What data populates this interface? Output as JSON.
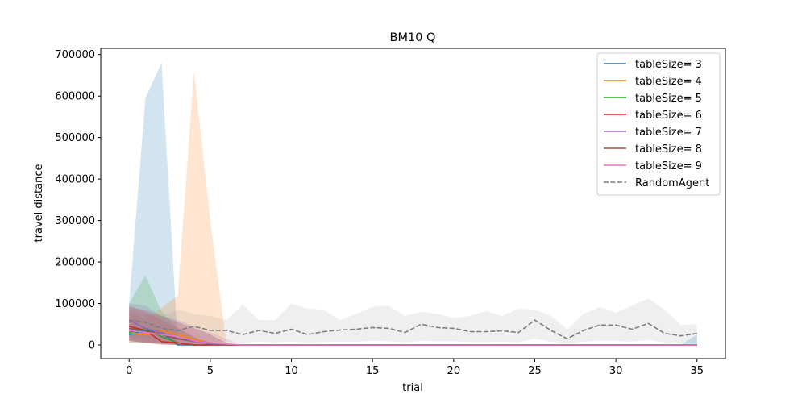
{
  "chart_data": {
    "type": "line",
    "title": "BM10  Q",
    "xlabel": "trial",
    "ylabel": "travel distance",
    "xlim": [
      -1.75,
      36.75
    ],
    "ylim": [
      -33000,
      715000
    ],
    "xticks": [
      0,
      5,
      10,
      15,
      20,
      25,
      30,
      35
    ],
    "yticks": [
      0,
      100000,
      200000,
      300000,
      400000,
      500000,
      600000,
      700000
    ],
    "grid": false,
    "legend_position": "top-right",
    "x": [
      0,
      1,
      2,
      3,
      4,
      5,
      6,
      7,
      8,
      9,
      10,
      11,
      12,
      13,
      14,
      15,
      16,
      17,
      18,
      19,
      20,
      21,
      22,
      23,
      24,
      25,
      26,
      27,
      28,
      29,
      30,
      31,
      32,
      33,
      34,
      35
    ],
    "series": [
      {
        "name": "tableSize= 3",
        "color": "#1f77b4",
        "style": "solid",
        "values": [
          25000,
          35000,
          30000,
          0,
          0,
          0,
          0,
          0,
          0,
          0,
          0,
          0,
          0,
          0,
          0,
          0,
          0,
          0,
          0,
          0,
          0,
          0,
          0,
          0,
          0,
          0,
          0,
          0,
          0,
          0,
          0,
          0,
          0,
          0,
          0,
          0
        ],
        "band_upper": [
          100000,
          595000,
          680000,
          0,
          0,
          0,
          0,
          0,
          0,
          0,
          0,
          0,
          0,
          0,
          0,
          0,
          0,
          0,
          0,
          0,
          0,
          0,
          0,
          0,
          0,
          0,
          0,
          0,
          0,
          0,
          0,
          0,
          0,
          0,
          0,
          25000
        ],
        "band_lower": [
          5000,
          5000,
          5000,
          0,
          0,
          0,
          0,
          0,
          0,
          0,
          0,
          0,
          0,
          0,
          0,
          0,
          0,
          0,
          0,
          0,
          0,
          0,
          0,
          0,
          0,
          0,
          0,
          0,
          0,
          0,
          0,
          0,
          0,
          0,
          0,
          0
        ]
      },
      {
        "name": "tableSize= 4",
        "color": "#ff7f0e",
        "style": "solid",
        "values": [
          30000,
          25000,
          35000,
          25000,
          15000,
          5000,
          0,
          0,
          0,
          0,
          0,
          0,
          0,
          0,
          0,
          0,
          0,
          0,
          0,
          0,
          0,
          0,
          0,
          0,
          0,
          0,
          0,
          0,
          0,
          0,
          0,
          0,
          0,
          0,
          0,
          0
        ],
        "band_upper": [
          80000,
          60000,
          90000,
          120000,
          660000,
          300000,
          0,
          0,
          0,
          0,
          0,
          0,
          0,
          0,
          0,
          0,
          0,
          0,
          0,
          0,
          0,
          0,
          0,
          0,
          0,
          0,
          0,
          0,
          0,
          0,
          0,
          0,
          0,
          0,
          0,
          0
        ],
        "band_lower": [
          5000,
          5000,
          5000,
          2000,
          0,
          0,
          0,
          0,
          0,
          0,
          0,
          0,
          0,
          0,
          0,
          0,
          0,
          0,
          0,
          0,
          0,
          0,
          0,
          0,
          0,
          0,
          0,
          0,
          0,
          0,
          0,
          0,
          0,
          0,
          0,
          0
        ]
      },
      {
        "name": "tableSize= 5",
        "color": "#2ca02c",
        "style": "solid",
        "values": [
          30000,
          40000,
          20000,
          5000,
          0,
          0,
          0,
          0,
          0,
          0,
          0,
          0,
          0,
          0,
          0,
          0,
          0,
          0,
          0,
          0,
          0,
          0,
          0,
          0,
          0,
          0,
          0,
          0,
          0,
          0,
          0,
          0,
          0,
          0,
          0,
          0
        ],
        "band_upper": [
          100000,
          168000,
          80000,
          40000,
          20000,
          0,
          0,
          0,
          0,
          0,
          0,
          0,
          0,
          0,
          0,
          0,
          0,
          0,
          0,
          0,
          0,
          0,
          0,
          0,
          0,
          0,
          0,
          0,
          0,
          0,
          0,
          0,
          0,
          0,
          0,
          0
        ],
        "band_lower": [
          10000,
          5000,
          2000,
          0,
          0,
          0,
          0,
          0,
          0,
          0,
          0,
          0,
          0,
          0,
          0,
          0,
          0,
          0,
          0,
          0,
          0,
          0,
          0,
          0,
          0,
          0,
          0,
          0,
          0,
          0,
          0,
          0,
          0,
          0,
          0,
          0
        ]
      },
      {
        "name": "tableSize= 6",
        "color": "#d62728",
        "style": "solid",
        "values": [
          45000,
          35000,
          8000,
          5000,
          0,
          0,
          0,
          0,
          0,
          0,
          0,
          0,
          0,
          0,
          0,
          0,
          0,
          0,
          0,
          0,
          0,
          0,
          0,
          0,
          0,
          0,
          0,
          0,
          0,
          0,
          0,
          0,
          0,
          0,
          0,
          0
        ],
        "band_upper": [
          95000,
          80000,
          60000,
          40000,
          20000,
          0,
          0,
          0,
          0,
          0,
          0,
          0,
          0,
          0,
          0,
          0,
          0,
          0,
          0,
          0,
          0,
          0,
          0,
          0,
          0,
          0,
          0,
          0,
          0,
          0,
          0,
          0,
          0,
          0,
          0,
          0
        ],
        "band_lower": [
          10000,
          5000,
          0,
          0,
          0,
          0,
          0,
          0,
          0,
          0,
          0,
          0,
          0,
          0,
          0,
          0,
          0,
          0,
          0,
          0,
          0,
          0,
          0,
          0,
          0,
          0,
          0,
          0,
          0,
          0,
          0,
          0,
          0,
          0,
          0,
          0
        ]
      },
      {
        "name": "tableSize= 7",
        "color": "#9467bd",
        "style": "solid",
        "values": [
          60000,
          40000,
          30000,
          15000,
          8000,
          3000,
          0,
          0,
          0,
          0,
          0,
          0,
          0,
          0,
          0,
          0,
          0,
          0,
          0,
          0,
          0,
          0,
          0,
          0,
          0,
          0,
          0,
          0,
          0,
          0,
          0,
          0,
          0,
          0,
          0,
          0
        ],
        "band_upper": [
          100000,
          95000,
          70000,
          60000,
          45000,
          25000,
          5000,
          0,
          0,
          0,
          0,
          0,
          0,
          0,
          0,
          0,
          0,
          0,
          0,
          0,
          0,
          0,
          0,
          0,
          0,
          0,
          0,
          0,
          0,
          0,
          0,
          0,
          0,
          0,
          0,
          0
        ],
        "band_lower": [
          15000,
          8000,
          3000,
          0,
          0,
          0,
          0,
          0,
          0,
          0,
          0,
          0,
          0,
          0,
          0,
          0,
          0,
          0,
          0,
          0,
          0,
          0,
          0,
          0,
          0,
          0,
          0,
          0,
          0,
          0,
          0,
          0,
          0,
          0,
          0,
          0
        ]
      },
      {
        "name": "tableSize= 8",
        "color": "#8c564b",
        "style": "solid",
        "values": [
          40000,
          35000,
          25000,
          15000,
          10000,
          5000,
          0,
          0,
          0,
          0,
          0,
          0,
          0,
          0,
          0,
          0,
          0,
          0,
          0,
          0,
          0,
          0,
          0,
          0,
          0,
          0,
          0,
          0,
          0,
          0,
          0,
          0,
          0,
          0,
          0,
          0
        ],
        "band_upper": [
          90000,
          85000,
          70000,
          55000,
          40000,
          25000,
          5000,
          0,
          0,
          0,
          0,
          0,
          0,
          0,
          0,
          0,
          0,
          0,
          0,
          0,
          0,
          0,
          0,
          0,
          0,
          0,
          0,
          0,
          0,
          0,
          0,
          0,
          0,
          0,
          0,
          0
        ],
        "band_lower": [
          10000,
          5000,
          2000,
          0,
          0,
          0,
          0,
          0,
          0,
          0,
          0,
          0,
          0,
          0,
          0,
          0,
          0,
          0,
          0,
          0,
          0,
          0,
          0,
          0,
          0,
          0,
          0,
          0,
          0,
          0,
          0,
          0,
          0,
          0,
          0,
          0
        ]
      },
      {
        "name": "tableSize= 9",
        "color": "#e377c2",
        "style": "solid",
        "values": [
          35000,
          30000,
          25000,
          20000,
          10000,
          5000,
          2000,
          0,
          0,
          0,
          0,
          0,
          0,
          0,
          0,
          0,
          0,
          0,
          0,
          0,
          0,
          0,
          0,
          0,
          0,
          0,
          0,
          0,
          0,
          0,
          0,
          0,
          0,
          0,
          0,
          0
        ],
        "band_upper": [
          85000,
          80000,
          65000,
          55000,
          40000,
          30000,
          15000,
          0,
          0,
          0,
          0,
          0,
          0,
          0,
          0,
          0,
          0,
          0,
          0,
          0,
          0,
          0,
          0,
          0,
          0,
          0,
          0,
          0,
          0,
          0,
          0,
          0,
          0,
          0,
          0,
          0
        ],
        "band_lower": [
          10000,
          5000,
          2000,
          0,
          0,
          0,
          0,
          0,
          0,
          0,
          0,
          0,
          0,
          0,
          0,
          0,
          0,
          0,
          0,
          0,
          0,
          0,
          0,
          0,
          0,
          0,
          0,
          0,
          0,
          0,
          0,
          0,
          0,
          0,
          0,
          0
        ]
      },
      {
        "name": "RandomAgent",
        "color": "#7f7f7f",
        "style": "dashed",
        "values": [
          60000,
          55000,
          40000,
          35000,
          45000,
          35000,
          35000,
          25000,
          35000,
          28000,
          38000,
          25000,
          32000,
          36000,
          38000,
          42000,
          40000,
          30000,
          50000,
          42000,
          40000,
          32000,
          32000,
          34000,
          30000,
          60000,
          35000,
          15000,
          35000,
          48000,
          48000,
          38000,
          52000,
          28000,
          22000,
          28000
        ],
        "band_upper": [
          80000,
          75000,
          70000,
          85000,
          75000,
          70000,
          60000,
          98000,
          60000,
          60000,
          100000,
          88000,
          85000,
          60000,
          75000,
          92000,
          95000,
          70000,
          80000,
          75000,
          65000,
          70000,
          82000,
          70000,
          88000,
          85000,
          70000,
          38000,
          75000,
          92000,
          78000,
          95000,
          112000,
          85000,
          48000,
          50000
        ],
        "band_lower": [
          20000,
          15000,
          10000,
          8000,
          10000,
          8000,
          8000,
          5000,
          8000,
          6000,
          8000,
          5000,
          7000,
          8000,
          8000,
          10000,
          9000,
          6000,
          10000,
          9000,
          9000,
          7000,
          7000,
          8000,
          6000,
          15000,
          8000,
          3000,
          8000,
          10000,
          10000,
          8000,
          12000,
          6000,
          5000,
          6000
        ]
      }
    ]
  }
}
